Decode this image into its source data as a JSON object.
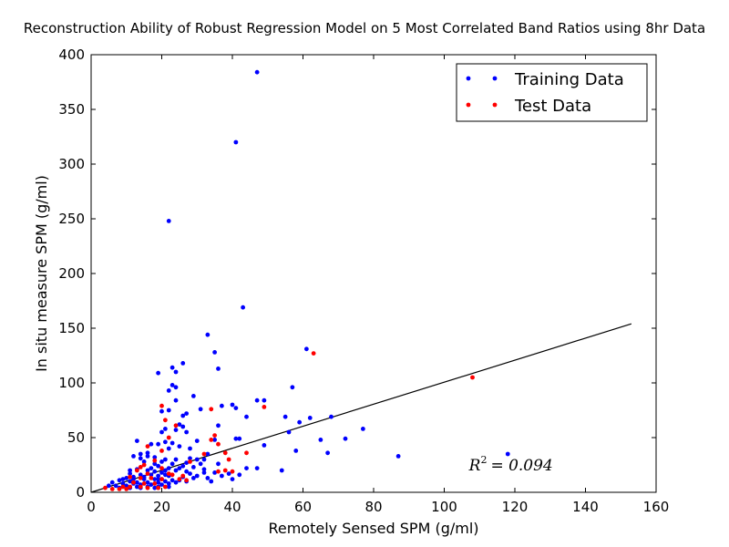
{
  "chart_data": {
    "type": "scatter",
    "title": "Reconstruction Ability of Robust Regression Model on 5 Most Correlated Band Ratios using 8hr Data",
    "xlabel": "Remotely Sensed SPM (g/ml)",
    "ylabel": "In situ measure SPM (g/ml)",
    "xlim": [
      0,
      160
    ],
    "ylim": [
      0,
      400
    ],
    "xticks": [
      0,
      20,
      40,
      60,
      80,
      100,
      120,
      140,
      160
    ],
    "yticks": [
      0,
      50,
      100,
      150,
      200,
      250,
      300,
      350,
      400
    ],
    "grid": false,
    "legend_position": "top-right",
    "annotation": {
      "lhs": "R",
      "sup": "2",
      "rhs": "= 0.094",
      "x": 107,
      "y": 25
    },
    "fit_line": {
      "x": [
        0,
        153
      ],
      "y": [
        0,
        154
      ]
    },
    "series": [
      {
        "name": "Training Data",
        "color": "#0000ff",
        "points": [
          [
            47,
            384
          ],
          [
            41,
            320
          ],
          [
            22,
            248
          ],
          [
            43,
            169
          ],
          [
            33,
            144
          ],
          [
            61,
            131
          ],
          [
            35,
            128
          ],
          [
            26,
            118
          ],
          [
            23,
            114
          ],
          [
            24,
            110
          ],
          [
            19,
            109
          ],
          [
            36,
            113
          ],
          [
            23,
            98
          ],
          [
            24,
            96
          ],
          [
            22,
            93
          ],
          [
            57,
            96
          ],
          [
            29,
            88
          ],
          [
            24,
            84
          ],
          [
            47,
            84
          ],
          [
            49,
            84
          ],
          [
            40,
            80
          ],
          [
            37,
            79
          ],
          [
            41,
            77
          ],
          [
            31,
            76
          ],
          [
            22,
            75
          ],
          [
            20,
            74
          ],
          [
            27,
            72
          ],
          [
            26,
            70
          ],
          [
            44,
            69
          ],
          [
            62,
            68
          ],
          [
            68,
            69
          ],
          [
            55,
            69
          ],
          [
            59,
            64
          ],
          [
            25,
            62
          ],
          [
            36,
            61
          ],
          [
            26,
            60
          ],
          [
            21,
            58
          ],
          [
            24,
            57
          ],
          [
            20,
            55
          ],
          [
            77,
            58
          ],
          [
            27,
            55
          ],
          [
            56,
            55
          ],
          [
            41,
            49
          ],
          [
            42,
            49
          ],
          [
            35,
            48
          ],
          [
            65,
            48
          ],
          [
            21,
            46
          ],
          [
            13,
            47
          ],
          [
            30,
            47
          ],
          [
            23,
            45
          ],
          [
            17,
            44
          ],
          [
            72,
            49
          ],
          [
            19,
            44
          ],
          [
            49,
            43
          ],
          [
            25,
            42
          ],
          [
            22,
            40
          ],
          [
            28,
            40
          ],
          [
            58,
            38
          ],
          [
            67,
            36
          ],
          [
            87,
            33
          ],
          [
            118,
            35
          ],
          [
            33,
            35
          ],
          [
            14,
            35
          ],
          [
            12,
            33
          ],
          [
            16,
            33
          ],
          [
            18,
            32
          ],
          [
            21,
            30
          ],
          [
            24,
            30
          ],
          [
            28,
            31
          ],
          [
            30,
            30
          ],
          [
            32,
            30
          ],
          [
            15,
            28
          ],
          [
            20,
            28
          ],
          [
            27,
            27
          ],
          [
            31,
            26
          ],
          [
            36,
            26
          ],
          [
            19,
            24
          ],
          [
            22,
            22
          ],
          [
            25,
            22
          ],
          [
            13,
            21
          ],
          [
            16,
            20
          ],
          [
            18,
            19
          ],
          [
            21,
            20
          ],
          [
            24,
            20
          ],
          [
            27,
            19
          ],
          [
            32,
            18
          ],
          [
            35,
            18
          ],
          [
            39,
            17
          ],
          [
            44,
            22
          ],
          [
            47,
            22
          ],
          [
            54,
            20
          ],
          [
            11,
            17
          ],
          [
            14,
            16
          ],
          [
            17,
            16
          ],
          [
            19,
            15
          ],
          [
            22,
            15
          ],
          [
            26,
            14
          ],
          [
            29,
            13
          ],
          [
            10,
            13
          ],
          [
            12,
            12
          ],
          [
            15,
            12
          ],
          [
            18,
            12
          ],
          [
            20,
            12
          ],
          [
            23,
            11
          ],
          [
            8,
            11
          ],
          [
            11,
            10
          ],
          [
            13,
            9
          ],
          [
            16,
            9
          ],
          [
            19,
            9
          ],
          [
            21,
            10
          ],
          [
            24,
            9
          ],
          [
            6,
            9
          ],
          [
            9,
            8
          ],
          [
            12,
            8
          ],
          [
            14,
            7
          ],
          [
            17,
            7
          ],
          [
            20,
            7
          ],
          [
            5,
            6
          ],
          [
            7,
            6
          ],
          [
            10,
            6
          ],
          [
            13,
            5
          ],
          [
            16,
            5
          ],
          [
            19,
            5
          ],
          [
            22,
            5
          ],
          [
            8,
            4
          ],
          [
            11,
            4
          ],
          [
            14,
            4
          ],
          [
            18,
            4
          ],
          [
            34,
            10
          ],
          [
            40,
            12
          ],
          [
            33,
            13
          ],
          [
            37,
            15
          ],
          [
            42,
            16
          ],
          [
            28,
            17
          ],
          [
            30,
            15
          ],
          [
            17,
            22
          ],
          [
            20,
            18
          ],
          [
            23,
            26
          ],
          [
            26,
            24
          ],
          [
            15,
            14
          ],
          [
            9,
            12
          ],
          [
            12,
            14
          ],
          [
            18,
            26
          ],
          [
            21,
            16
          ],
          [
            16,
            36
          ],
          [
            14,
            31
          ],
          [
            11,
            20
          ],
          [
            19,
            12
          ],
          [
            22,
            8
          ],
          [
            25,
            11
          ],
          [
            27,
            10
          ],
          [
            32,
            21
          ],
          [
            29,
            23
          ]
        ]
      },
      {
        "name": "Test Data",
        "color": "#ff0000",
        "points": [
          [
            63,
            127
          ],
          [
            108,
            105
          ],
          [
            20,
            79
          ],
          [
            34,
            76
          ],
          [
            49,
            78
          ],
          [
            21,
            66
          ],
          [
            24,
            61
          ],
          [
            22,
            50
          ],
          [
            35,
            52
          ],
          [
            34,
            48
          ],
          [
            36,
            44
          ],
          [
            16,
            42
          ],
          [
            20,
            38
          ],
          [
            38,
            36
          ],
          [
            44,
            36
          ],
          [
            32,
            35
          ],
          [
            18,
            29
          ],
          [
            39,
            30
          ],
          [
            28,
            28
          ],
          [
            15,
            25
          ],
          [
            14,
            23
          ],
          [
            20,
            22
          ],
          [
            13,
            20
          ],
          [
            38,
            20
          ],
          [
            36,
            19
          ],
          [
            40,
            19
          ],
          [
            16,
            17
          ],
          [
            22,
            17
          ],
          [
            23,
            16
          ],
          [
            26,
            15
          ],
          [
            11,
            14
          ],
          [
            14,
            13
          ],
          [
            17,
            13
          ],
          [
            20,
            12
          ],
          [
            25,
            12
          ],
          [
            27,
            11
          ],
          [
            12,
            9
          ],
          [
            15,
            8
          ],
          [
            18,
            8
          ],
          [
            9,
            5
          ],
          [
            11,
            5
          ],
          [
            14,
            5
          ],
          [
            16,
            4
          ],
          [
            19,
            4
          ],
          [
            21,
            5
          ],
          [
            6,
            3
          ],
          [
            8,
            3
          ],
          [
            4,
            4
          ],
          [
            10,
            3
          ]
        ]
      }
    ]
  }
}
